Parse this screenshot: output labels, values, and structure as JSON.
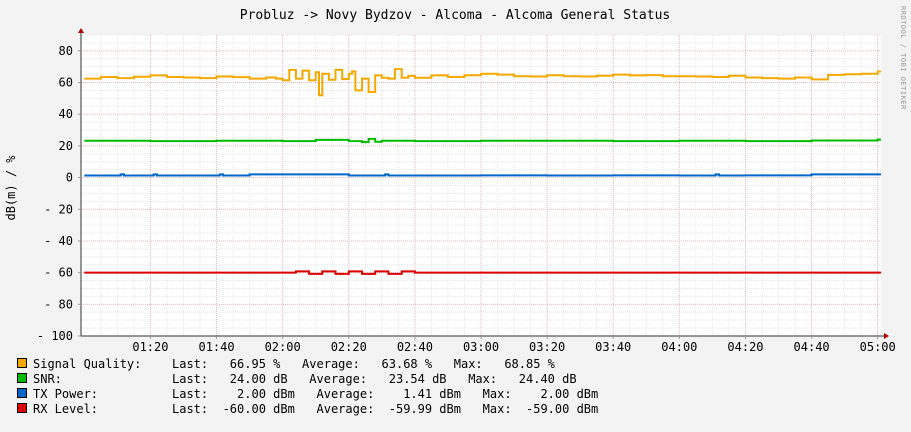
{
  "chart_data": {
    "type": "line",
    "title": "Probluz -> Novy Bydzov - Alcoma - Alcoma General Status",
    "xlabel": "",
    "ylabel": "dB(m) / %",
    "ylim": [
      -100,
      90
    ],
    "yticks": [
      80,
      60,
      40,
      20,
      0,
      -20,
      -40,
      -60,
      -80,
      -100
    ],
    "ytick_labels": [
      "80",
      "60",
      "40",
      "20",
      "0",
      "- 20",
      "- 40",
      "- 60",
      "- 80",
      "- 100"
    ],
    "xlim": [
      "00:59",
      "05:01"
    ],
    "xtick_labels": [
      "01:20",
      "01:40",
      "02:00",
      "02:20",
      "02:40",
      "03:00",
      "03:20",
      "03:40",
      "04:00",
      "04:20",
      "04:40",
      "05:00"
    ],
    "grid": true,
    "legend_position": "bottom",
    "watermark": "RRDTOOL / TOBI OETIKER",
    "series": [
      {
        "name": "Signal Quality:",
        "color": "#f5a800",
        "stats": "Last:   66.95 %   Average:   63.68 %   Max:   68.85 %",
        "x": [
          "01:00",
          "01:05",
          "01:10",
          "01:15",
          "01:20",
          "01:25",
          "01:30",
          "01:35",
          "01:40",
          "01:45",
          "01:50",
          "01:55",
          "01:58",
          "02:00",
          "02:02",
          "02:04",
          "02:06",
          "02:08",
          "02:10",
          "02:11",
          "02:12",
          "02:14",
          "02:16",
          "02:18",
          "02:20",
          "02:21",
          "02:22",
          "02:24",
          "02:26",
          "02:28",
          "02:30",
          "02:32",
          "02:34",
          "02:36",
          "02:38",
          "02:40",
          "02:45",
          "02:50",
          "02:55",
          "03:00",
          "03:05",
          "03:10",
          "03:15",
          "03:20",
          "03:25",
          "03:30",
          "03:35",
          "03:40",
          "03:45",
          "03:50",
          "03:55",
          "04:00",
          "04:05",
          "04:10",
          "04:15",
          "04:20",
          "04:25",
          "04:30",
          "04:35",
          "04:40",
          "04:45",
          "04:50",
          "04:55",
          "05:00"
        ],
        "y": [
          62.5,
          63.5,
          62.8,
          63.6,
          64.5,
          63.5,
          63.2,
          62.8,
          63.8,
          63.4,
          62.5,
          63.2,
          62.5,
          61.5,
          68,
          62.5,
          67.5,
          61.5,
          66.5,
          52,
          65.5,
          61.8,
          68,
          62.2,
          65.5,
          67,
          55,
          62.5,
          54,
          64.5,
          63,
          62.5,
          68.5,
          63,
          64.2,
          63,
          64.5,
          63.5,
          64.6,
          65.5,
          65,
          64,
          63.8,
          64.6,
          64,
          63.8,
          64.3,
          65,
          64.5,
          64.7,
          64,
          64,
          63.8,
          63.5,
          64.3,
          63.2,
          62.8,
          62.5,
          63.2,
          62,
          64.8,
          65.2,
          65.6,
          66.95
        ]
      },
      {
        "name": "SNR:",
        "color": "#00bb00",
        "stats": "Last:   24.00 dB   Average:   23.54 dB   Max:   24.40 dB",
        "x": [
          "01:00",
          "01:20",
          "01:40",
          "02:00",
          "02:10",
          "02:20",
          "02:24",
          "02:26",
          "02:28",
          "02:30",
          "02:40",
          "03:00",
          "03:20",
          "03:40",
          "04:00",
          "04:20",
          "04:40",
          "05:00"
        ],
        "y": [
          23.2,
          23.0,
          23.3,
          23.0,
          23.8,
          23.0,
          22.4,
          24.4,
          22.6,
          23.2,
          23.0,
          23.3,
          23.2,
          23.0,
          23.3,
          23.0,
          23.4,
          24.0
        ]
      },
      {
        "name": "TX Power:",
        "color": "#0066cc",
        "stats": "Last:    2.00 dBm   Average:    1.41 dBm   Max:    2.00 dBm",
        "x": [
          "01:00",
          "01:10",
          "01:11",
          "01:12",
          "01:20",
          "01:21",
          "01:22",
          "01:40",
          "01:41",
          "01:42",
          "01:50",
          "02:00",
          "02:20",
          "02:30",
          "02:31",
          "02:32",
          "02:40",
          "03:00",
          "03:20",
          "03:40",
          "04:00",
          "04:10",
          "04:11",
          "04:12",
          "04:20",
          "04:40",
          "05:00"
        ],
        "y": [
          1.3,
          1.3,
          2.0,
          1.3,
          1.3,
          2.0,
          1.3,
          1.3,
          2.0,
          1.3,
          2.0,
          2.0,
          1.3,
          1.3,
          2.0,
          1.3,
          1.3,
          1.4,
          1.3,
          1.4,
          1.3,
          1.3,
          2.0,
          1.3,
          1.4,
          2.0,
          2.0
        ]
      },
      {
        "name": "RX Level:",
        "color": "#dd0000",
        "stats": "Last:  -60.00 dBm   Average:  -59.99 dBm   Max:  -59.00 dBm",
        "x": [
          "01:00",
          "02:00",
          "02:04",
          "02:08",
          "02:12",
          "02:16",
          "02:20",
          "02:24",
          "02:28",
          "02:32",
          "02:36",
          "02:40",
          "03:00",
          "04:00",
          "05:00"
        ],
        "y": [
          -60,
          -60,
          -59.2,
          -60.8,
          -59.2,
          -60.8,
          -59.2,
          -60.8,
          -59.2,
          -60.8,
          -59.2,
          -60,
          -60,
          -60,
          -60
        ]
      }
    ]
  }
}
